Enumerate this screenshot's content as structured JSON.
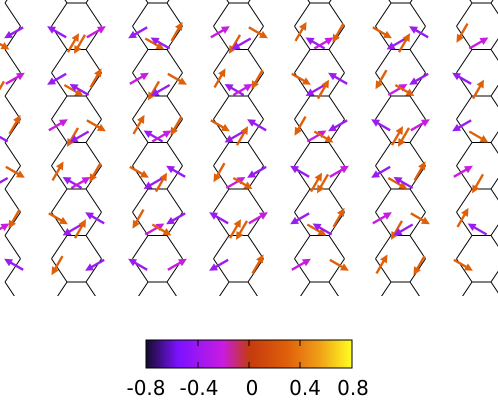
{
  "colorbar": {
    "tick_labels": [
      "-0.8",
      "-0.4",
      "0",
      "0.4",
      "0.8"
    ],
    "range": [
      -0.8,
      0.8
    ],
    "colormap": "plasma",
    "stops": [
      {
        "v": -0.8,
        "color": "#140c2c"
      },
      {
        "v": -0.55,
        "color": "#7b12ff"
      },
      {
        "v": -0.2,
        "color": "#c81ce0"
      },
      {
        "v": 0.0,
        "color": "#c43a0e"
      },
      {
        "v": 0.3,
        "color": "#e0600a"
      },
      {
        "v": 0.55,
        "color": "#f0a018"
      },
      {
        "v": 0.8,
        "color": "#ffff20"
      }
    ]
  },
  "lattice": {
    "type": "honeycomb",
    "rows": 5,
    "columns": 6,
    "line_color": "#000000"
  },
  "arrows": {
    "colors": {
      "orange": "#e0600a",
      "purple": "#9a1cf0",
      "magenta": "#c81ce0"
    }
  }
}
